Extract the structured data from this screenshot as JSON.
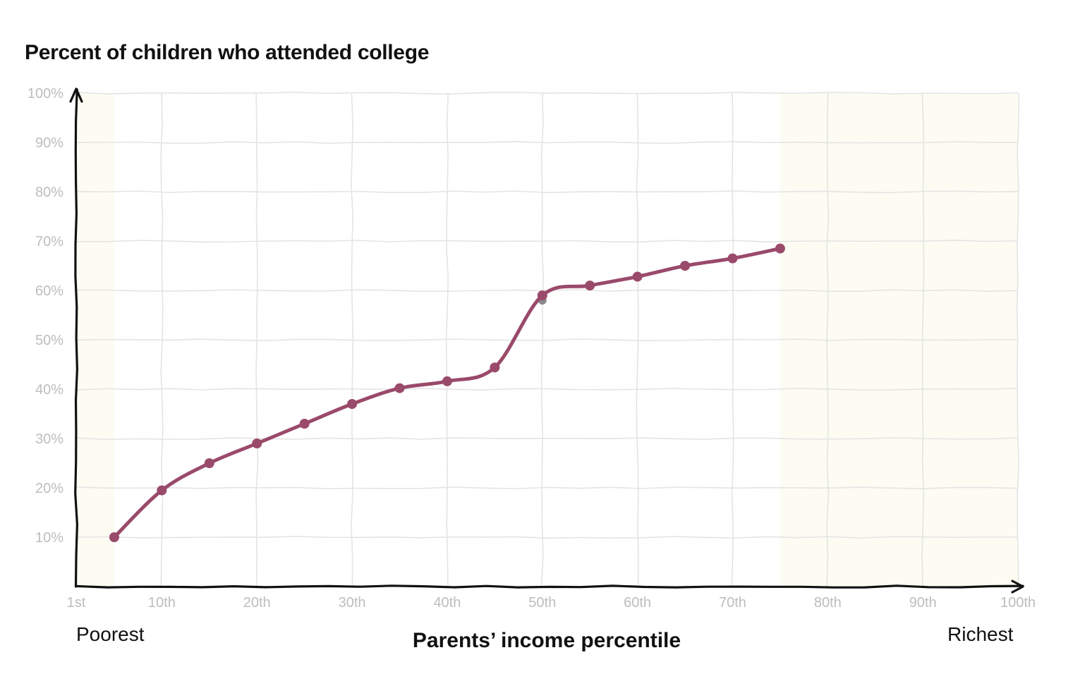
{
  "chart_data": {
    "type": "line",
    "title": "Percent of children who attended college",
    "xlabel": "Parents’ income percentile",
    "ylabel": "",
    "x_left_label": "Poorest",
    "x_right_label": "Richest",
    "xlim": [
      1,
      100
    ],
    "ylim": [
      0,
      100
    ],
    "x_ticks": [
      {
        "value": 1,
        "label": "1st"
      },
      {
        "value": 10,
        "label": "10th"
      },
      {
        "value": 20,
        "label": "20th"
      },
      {
        "value": 30,
        "label": "30th"
      },
      {
        "value": 40,
        "label": "40th"
      },
      {
        "value": 50,
        "label": "50th"
      },
      {
        "value": 60,
        "label": "60th"
      },
      {
        "value": 70,
        "label": "70th"
      },
      {
        "value": 80,
        "label": "80th"
      },
      {
        "value": 90,
        "label": "90th"
      },
      {
        "value": 100,
        "label": "100th"
      }
    ],
    "y_ticks": [
      {
        "value": 10,
        "label": "10%"
      },
      {
        "value": 20,
        "label": "20%"
      },
      {
        "value": 30,
        "label": "30%"
      },
      {
        "value": 40,
        "label": "40%"
      },
      {
        "value": 50,
        "label": "50%"
      },
      {
        "value": 60,
        "label": "60%"
      },
      {
        "value": 70,
        "label": "70%"
      },
      {
        "value": 80,
        "label": "80%"
      },
      {
        "value": 90,
        "label": "90%"
      },
      {
        "value": 100,
        "label": "100%"
      }
    ],
    "grid": true,
    "shaded_regions": [
      {
        "from": 1,
        "to": 5
      },
      {
        "from": 75,
        "to": 100
      }
    ],
    "series": [
      {
        "x": [
          5,
          10,
          15,
          20,
          25,
          30,
          35,
          40,
          45,
          50,
          55,
          60,
          65,
          70,
          75
        ],
        "y": [
          10,
          19.5,
          25,
          29,
          33,
          37,
          40.2,
          41.6,
          44.4,
          59,
          61,
          62.8,
          65,
          66.5,
          68.5
        ]
      }
    ],
    "marker": {
      "x": 50,
      "y": 58
    }
  },
  "colors": {
    "line": "#9a4a6a",
    "axis": "#111111",
    "grid": "#e4e4e4",
    "shade": "#fcfcf2",
    "tick_text": "#bdbdbd",
    "marker": "#8a8a8a"
  }
}
